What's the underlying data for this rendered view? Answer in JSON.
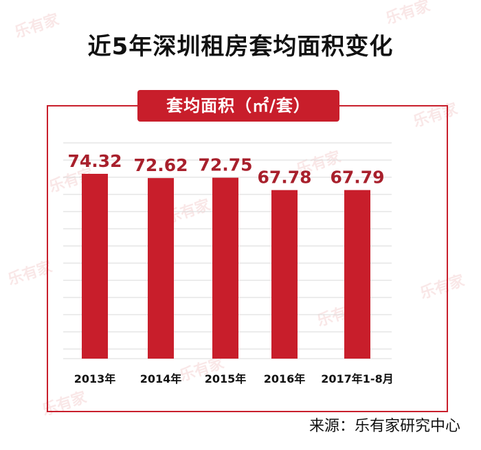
{
  "title": "近5年深圳租房套均面积变化",
  "source": "来源：乐有家研究中心",
  "colors": {
    "bar": "#c81e2b",
    "label": "#a8202c",
    "grid": "#d9d9d9",
    "frame": "#c81e2b"
  },
  "chart_data": {
    "type": "bar",
    "title": "套均面积（㎡/套）",
    "categories": [
      "2013年",
      "2014年",
      "2015年",
      "2016年",
      "2017年1-8月"
    ],
    "values": [
      74.32,
      72.62,
      72.75,
      67.78,
      67.79
    ],
    "data_labels": [
      "74.32",
      "72.62",
      "72.75",
      "67.78",
      "67.79"
    ],
    "grid": true,
    "legend": "none"
  }
}
